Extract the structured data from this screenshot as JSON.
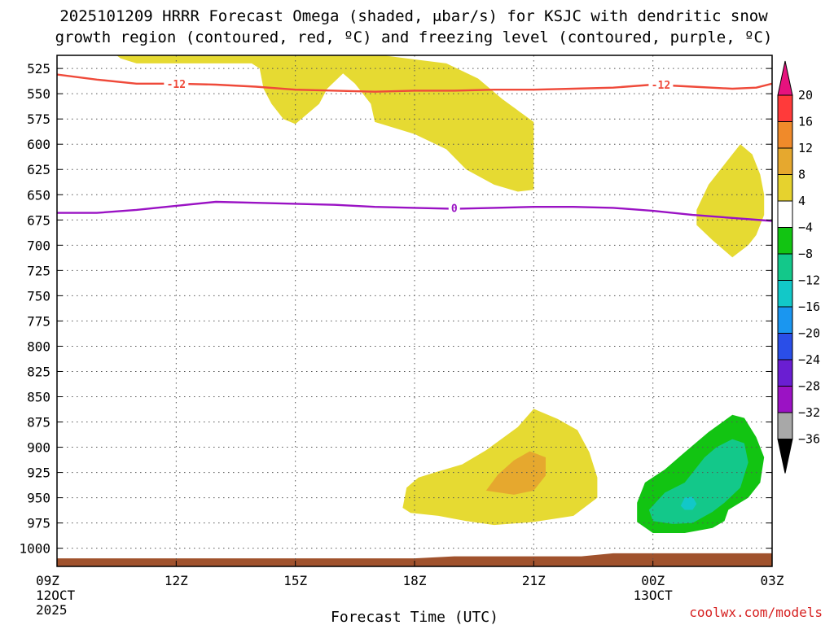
{
  "chart_data": {
    "type": "contour",
    "title": {
      "line1": "2025101209 HRRR Forecast Omega (shaded, μbar/s) for KSJC with dendritic snow",
      "line2": "growth region (contoured, red, ºC) and freezing level (contoured, purple, ºC)"
    },
    "xlabel": "Forecast Time (UTC)",
    "credit": "coolwx.com/models",
    "x_range_hours": [
      0,
      18
    ],
    "y_range_mb": [
      512,
      1018
    ],
    "x_ticks": [
      {
        "hour": 0,
        "label": "09Z",
        "sub1": "12OCT",
        "sub2": "2025"
      },
      {
        "hour": 3,
        "label": "12Z",
        "sub1": "",
        "sub2": ""
      },
      {
        "hour": 6,
        "label": "15Z",
        "sub1": "",
        "sub2": ""
      },
      {
        "hour": 9,
        "label": "18Z",
        "sub1": "",
        "sub2": ""
      },
      {
        "hour": 12,
        "label": "21Z",
        "sub1": "",
        "sub2": ""
      },
      {
        "hour": 15,
        "label": "00Z",
        "sub1": "13OCT",
        "sub2": ""
      },
      {
        "hour": 18,
        "label": "03Z",
        "sub1": "",
        "sub2": ""
      }
    ],
    "y_ticks": [
      525,
      550,
      575,
      600,
      625,
      650,
      675,
      700,
      725,
      750,
      775,
      800,
      825,
      850,
      875,
      900,
      925,
      950,
      975,
      1000
    ],
    "colorbar": {
      "labels": [
        "20",
        "16",
        "12",
        "8",
        "4",
        "−4",
        "−8",
        "−12",
        "−16",
        "−20",
        "−24",
        "−28",
        "−32",
        "−36"
      ],
      "colors": [
        "#ff3a3a",
        "#f08a2a",
        "#e6a82e",
        "#e6d22e",
        "#ffffff",
        "#12c412",
        "#13c88a",
        "#12c8c8",
        "#1a96f0",
        "#2a4ee8",
        "#6a1ed2",
        "#9b12c4",
        "#a8a8a8"
      ],
      "top_color": "#e6127e",
      "bottom_color": "#000000"
    },
    "fill_colors": {
      "yellow": "#e6da32",
      "orange": "#e6a82e",
      "green": "#12c412",
      "teal": "#13c88a",
      "cyan": "#12c8c8",
      "terrain": "#a0522d"
    },
    "omega_regions": [
      {
        "level": "4",
        "color": "yellow",
        "points": [
          [
            1.5,
            512
          ],
          [
            3.9,
            512
          ],
          [
            5.0,
            512
          ],
          [
            8.2,
            512
          ],
          [
            9.8,
            520
          ],
          [
            10.6,
            535
          ],
          [
            11.2,
            555
          ],
          [
            12.0,
            578
          ],
          [
            12.0,
            625
          ],
          [
            12.0,
            645
          ],
          [
            11.6,
            647
          ],
          [
            11.0,
            640
          ],
          [
            10.3,
            625
          ],
          [
            9.8,
            605
          ],
          [
            9.0,
            590
          ],
          [
            8.0,
            578
          ],
          [
            7.9,
            560
          ],
          [
            7.5,
            540
          ],
          [
            7.2,
            530
          ],
          [
            6.8,
            545
          ],
          [
            6.6,
            560
          ],
          [
            6.3,
            570
          ],
          [
            6.0,
            580
          ],
          [
            5.7,
            575
          ],
          [
            5.4,
            560
          ],
          [
            5.2,
            545
          ],
          [
            5.1,
            525
          ],
          [
            4.9,
            520
          ],
          [
            2.9,
            520
          ],
          [
            2.0,
            520
          ],
          [
            1.6,
            515
          ]
        ]
      },
      {
        "level": "4",
        "color": "yellow",
        "points": [
          [
            16.1,
            665
          ],
          [
            16.4,
            640
          ],
          [
            16.7,
            625
          ],
          [
            17.0,
            610
          ],
          [
            17.2,
            600
          ],
          [
            17.5,
            610
          ],
          [
            17.7,
            630
          ],
          [
            17.8,
            650
          ],
          [
            17.8,
            670
          ],
          [
            17.6,
            690
          ],
          [
            17.4,
            700
          ],
          [
            17.0,
            712
          ],
          [
            16.5,
            695
          ],
          [
            16.1,
            680
          ]
        ]
      },
      {
        "level": "4",
        "color": "yellow",
        "points": [
          [
            8.7,
            960
          ],
          [
            8.8,
            940
          ],
          [
            9.1,
            930
          ],
          [
            9.6,
            924
          ],
          [
            10.2,
            917
          ],
          [
            10.8,
            903
          ],
          [
            11.6,
            880
          ],
          [
            12.0,
            862
          ],
          [
            12.6,
            872
          ],
          [
            13.1,
            883
          ],
          [
            13.4,
            905
          ],
          [
            13.6,
            930
          ],
          [
            13.6,
            950
          ],
          [
            13.0,
            968
          ],
          [
            12.0,
            974
          ],
          [
            11.0,
            977
          ],
          [
            10.3,
            973
          ],
          [
            9.6,
            968
          ],
          [
            8.9,
            965
          ]
        ]
      },
      {
        "level": "8",
        "color": "orange",
        "points": [
          [
            10.8,
            943
          ],
          [
            11.1,
            927
          ],
          [
            11.5,
            913
          ],
          [
            11.9,
            904
          ],
          [
            12.3,
            910
          ],
          [
            12.3,
            928
          ],
          [
            12.0,
            943
          ],
          [
            11.5,
            947
          ]
        ]
      },
      {
        "level": "-4",
        "color": "green",
        "points": [
          [
            14.6,
            955
          ],
          [
            14.8,
            935
          ],
          [
            15.3,
            922
          ],
          [
            15.8,
            905
          ],
          [
            16.4,
            885
          ],
          [
            17.0,
            868
          ],
          [
            17.3,
            871
          ],
          [
            17.6,
            890
          ],
          [
            17.8,
            910
          ],
          [
            17.7,
            935
          ],
          [
            17.4,
            950
          ],
          [
            16.9,
            962
          ],
          [
            16.8,
            973
          ],
          [
            16.5,
            980
          ],
          [
            15.8,
            985
          ],
          [
            15.0,
            985
          ],
          [
            14.6,
            974
          ]
        ]
      },
      {
        "level": "-8",
        "color": "teal",
        "points": [
          [
            14.9,
            962
          ],
          [
            15.3,
            945
          ],
          [
            15.8,
            935
          ],
          [
            16.3,
            910
          ],
          [
            16.6,
            900
          ],
          [
            17.0,
            892
          ],
          [
            17.3,
            896
          ],
          [
            17.4,
            915
          ],
          [
            17.2,
            940
          ],
          [
            16.8,
            955
          ],
          [
            16.5,
            964
          ],
          [
            16.0,
            975
          ],
          [
            15.5,
            976
          ],
          [
            15.0,
            973
          ]
        ]
      },
      {
        "level": "-12",
        "color": "cyan",
        "points": [
          [
            15.7,
            958
          ],
          [
            15.8,
            950
          ],
          [
            16.0,
            949
          ],
          [
            16.1,
            956
          ],
          [
            16.0,
            962
          ],
          [
            15.8,
            962
          ]
        ]
      }
    ],
    "terrain": {
      "color": "terrain",
      "points": [
        [
          0,
          1010
        ],
        [
          9,
          1010
        ],
        [
          10,
          1008
        ],
        [
          13.2,
          1008
        ],
        [
          14,
          1005
        ],
        [
          18,
          1005
        ],
        [
          18,
          1018
        ],
        [
          0,
          1018
        ]
      ]
    },
    "dgz_line": {
      "label": "-12",
      "color": "#ef4a3a",
      "points": [
        [
          0,
          531
        ],
        [
          1,
          536
        ],
        [
          2,
          540
        ],
        [
          3,
          540
        ],
        [
          4,
          541
        ],
        [
          5,
          543
        ],
        [
          6,
          546
        ],
        [
          7,
          547
        ],
        [
          8,
          548
        ],
        [
          9,
          547
        ],
        [
          10,
          547
        ],
        [
          11,
          546
        ],
        [
          12,
          546
        ],
        [
          13,
          545
        ],
        [
          14,
          544
        ],
        [
          15,
          541
        ],
        [
          16,
          543
        ],
        [
          17,
          545
        ],
        [
          17.6,
          544
        ],
        [
          18,
          540
        ]
      ],
      "label_at": [
        [
          3,
          540
        ],
        [
          15.2,
          541
        ]
      ]
    },
    "freezing_line": {
      "label": "0",
      "color": "#9a12c4",
      "points": [
        [
          0,
          668
        ],
        [
          1,
          668
        ],
        [
          2,
          665
        ],
        [
          3,
          661
        ],
        [
          4,
          657
        ],
        [
          5,
          658
        ],
        [
          6,
          659
        ],
        [
          7,
          660
        ],
        [
          8,
          662
        ],
        [
          9,
          663
        ],
        [
          10,
          664
        ],
        [
          11,
          663
        ],
        [
          12,
          662
        ],
        [
          13,
          662
        ],
        [
          14,
          663
        ],
        [
          15,
          666
        ],
        [
          16,
          670
        ],
        [
          17,
          673
        ],
        [
          18,
          676
        ]
      ],
      "label_at": [
        [
          10,
          663
        ]
      ]
    }
  }
}
